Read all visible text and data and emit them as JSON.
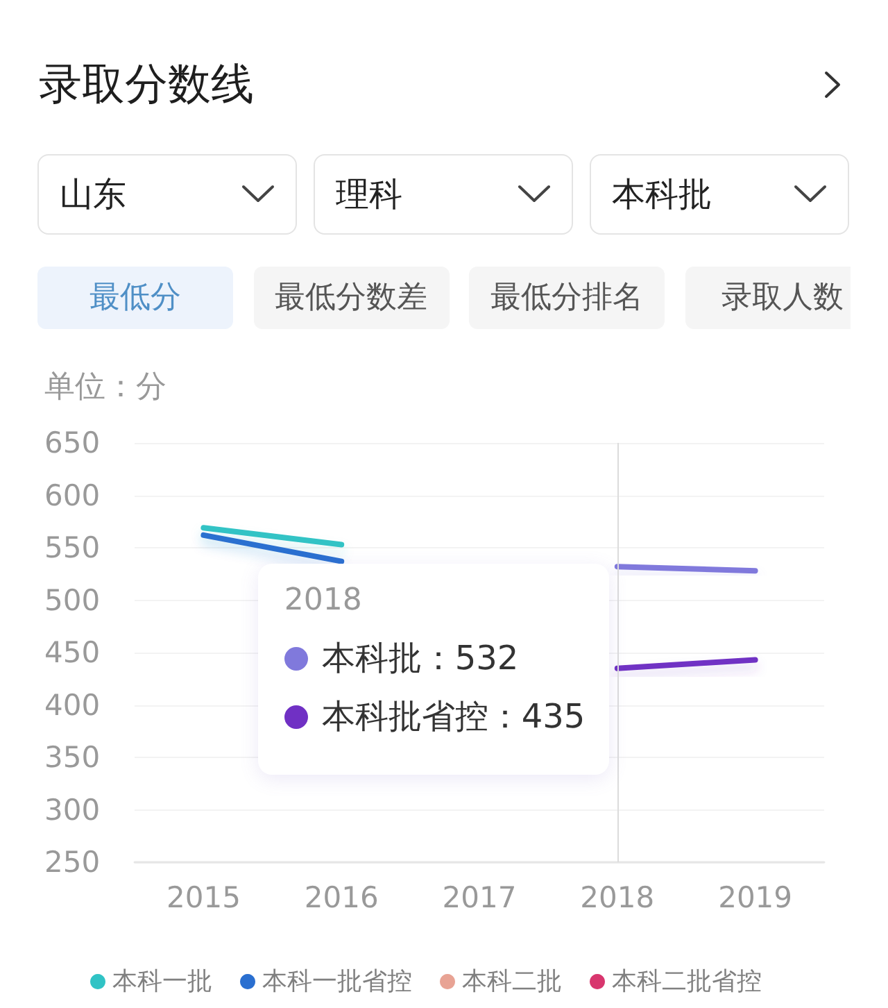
{
  "chart_data": {
    "type": "line",
    "title": "录取分数线",
    "ylabel": "单位：分",
    "categories": [
      "2015",
      "2016",
      "2017",
      "2018",
      "2019"
    ],
    "series": [
      {
        "name": "本科一批",
        "color": "#30c3c5",
        "values": [
          569,
          553,
          null,
          null,
          null
        ]
      },
      {
        "name": "本科一批省控",
        "color": "#2a6fd0",
        "values": [
          562,
          537,
          null,
          null,
          null
        ]
      },
      {
        "name": "本科二批",
        "color": "#e8a394",
        "values": [
          null,
          null,
          null,
          null,
          null
        ]
      },
      {
        "name": "本科二批省控",
        "color": "#d8366e",
        "values": [
          null,
          null,
          null,
          null,
          null
        ]
      },
      {
        "name": "本科批",
        "color": "#8079dc",
        "values": [
          null,
          null,
          null,
          532,
          528
        ]
      },
      {
        "name": "本科批省控",
        "color": "#7030c4",
        "values": [
          null,
          null,
          null,
          435,
          443
        ]
      }
    ],
    "ylim": [
      250,
      650
    ],
    "yticks": [
      250,
      300,
      350,
      400,
      450,
      500,
      550,
      600,
      650
    ],
    "grid": "y",
    "legend": "bottom",
    "marker": "none",
    "ref_lines": [
      {
        "axis": "x",
        "value": "2018",
        "color": "#dcdcdc"
      }
    ],
    "annotations": [
      "山东",
      "理科",
      "本科批",
      "最低分",
      "最低分数差",
      "最低分排名",
      "录取人数",
      "2018",
      "：532",
      "：435"
    ]
  }
}
